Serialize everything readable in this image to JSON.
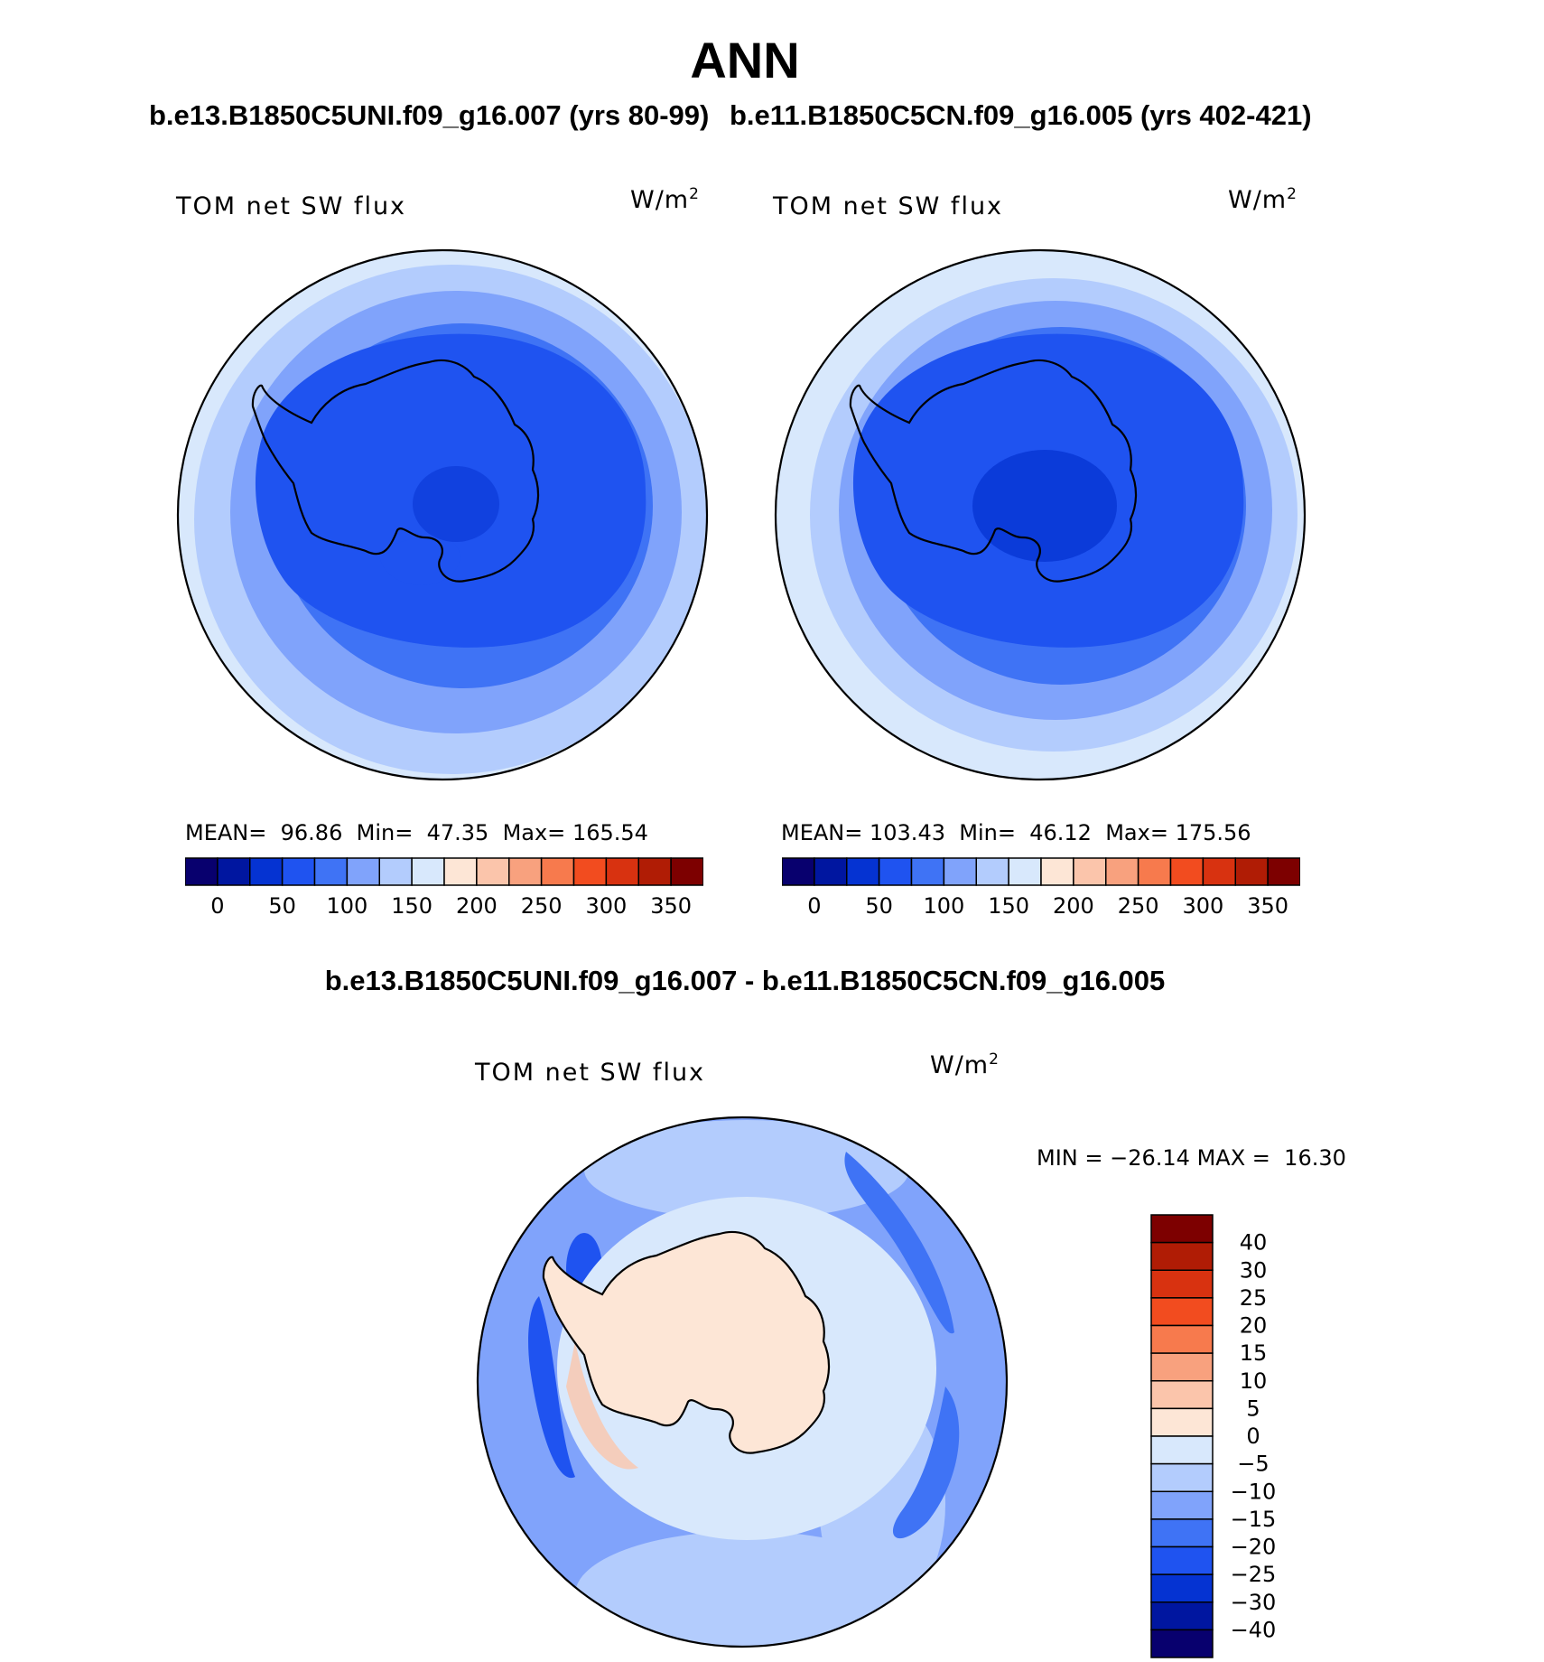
{
  "title": "ANN",
  "case1_title": "b.e13.B1850C5UNI.f09_g16.007 (yrs 80-99)",
  "case2_title": "b.e11.B1850C5CN.f09_g16.005 (yrs 402-421)",
  "diff_title": "b.e13.B1850C5UNI.f09_g16.007 - b.e11.B1850C5CN.f09_g16.005",
  "colors": {
    "abs_scale": [
      "#08006e",
      "#0016a0",
      "#0533d2",
      "#1f53f0",
      "#3f73f5",
      "#80a3fb",
      "#b3ccfd",
      "#d8e8fc",
      "#fde6d6",
      "#fbc5ab",
      "#f8a17e",
      "#f77a4d",
      "#f24c1f",
      "#d83210",
      "#b01c05",
      "#7d0000"
    ],
    "diff_scale": [
      "#08006e",
      "#0016a0",
      "#0533d2",
      "#1f53f0",
      "#3f73f5",
      "#80a3fb",
      "#b3ccfd",
      "#d8e8fc",
      "#fde6d6",
      "#fbc5ab",
      "#f8a17e",
      "#f77a4d",
      "#f24c1f",
      "#d83210",
      "#b01c05",
      "#7d0000"
    ]
  },
  "chart_data": [
    {
      "type": "heatmap",
      "projection": "south polar stereographic",
      "label": "TOM net SW flux",
      "units": "W/m",
      "units_sup": "2",
      "mean_label": "MEAN=",
      "mean": "96.86",
      "min_label": "Min=",
      "min": "47.35",
      "max_label": "Max=",
      "max": "165.54",
      "colorbar_ticks": [
        "0",
        "50",
        "100",
        "150",
        "200",
        "250",
        "300",
        "350"
      ],
      "contour_levels": [
        0,
        25,
        50,
        75,
        100,
        125,
        150,
        175,
        200,
        225,
        250,
        275,
        300,
        325,
        350
      ]
    },
    {
      "type": "heatmap",
      "projection": "south polar stereographic",
      "label": "TOM net SW flux",
      "units": "W/m",
      "units_sup": "2",
      "mean_label": "MEAN=",
      "mean": "103.43",
      "min_label": "Min=",
      "min": "46.12",
      "max_label": "Max=",
      "max": "175.56",
      "colorbar_ticks": [
        "0",
        "50",
        "100",
        "150",
        "200",
        "250",
        "300",
        "350"
      ],
      "contour_levels": [
        0,
        25,
        50,
        75,
        100,
        125,
        150,
        175,
        200,
        225,
        250,
        275,
        300,
        325,
        350
      ]
    },
    {
      "type": "heatmap",
      "projection": "south polar stereographic",
      "label": "TOM net SW flux",
      "units": "W/m",
      "units_sup": "2",
      "min_label": "MIN =",
      "min": "−26.14",
      "max_label": "MAX =",
      "max": "16.30",
      "colorbar_ticks": [
        "40",
        "30",
        "25",
        "20",
        "15",
        "10",
        "5",
        "0",
        "−5",
        "−10",
        "−15",
        "−20",
        "−25",
        "−30",
        "−40"
      ],
      "contour_levels": [
        -40,
        -30,
        -25,
        -20,
        -15,
        -10,
        -5,
        0,
        5,
        10,
        15,
        20,
        25,
        30,
        40
      ]
    }
  ]
}
